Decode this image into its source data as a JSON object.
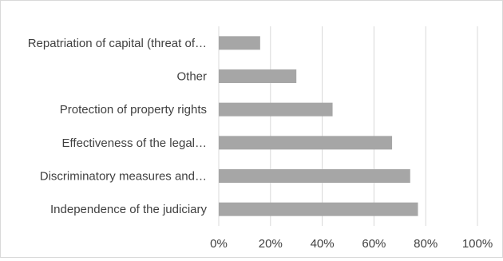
{
  "chart_data": {
    "type": "bar",
    "orientation": "horizontal",
    "categories": [
      "Repatriation of capital (threat of…",
      "Other",
      "Protection of property rights",
      "Effectiveness of the legal…",
      "Discriminatory measures and…",
      "Independence of the judiciary"
    ],
    "values": [
      16,
      30,
      44,
      67,
      74,
      77
    ],
    "xlim": [
      0,
      100
    ],
    "x_ticks": [
      "0%",
      "20%",
      "40%",
      "60%",
      "80%",
      "100%"
    ],
    "grid": "vertical",
    "bar_color": "#a6a6a6",
    "grid_color": "#d9d9d9"
  }
}
